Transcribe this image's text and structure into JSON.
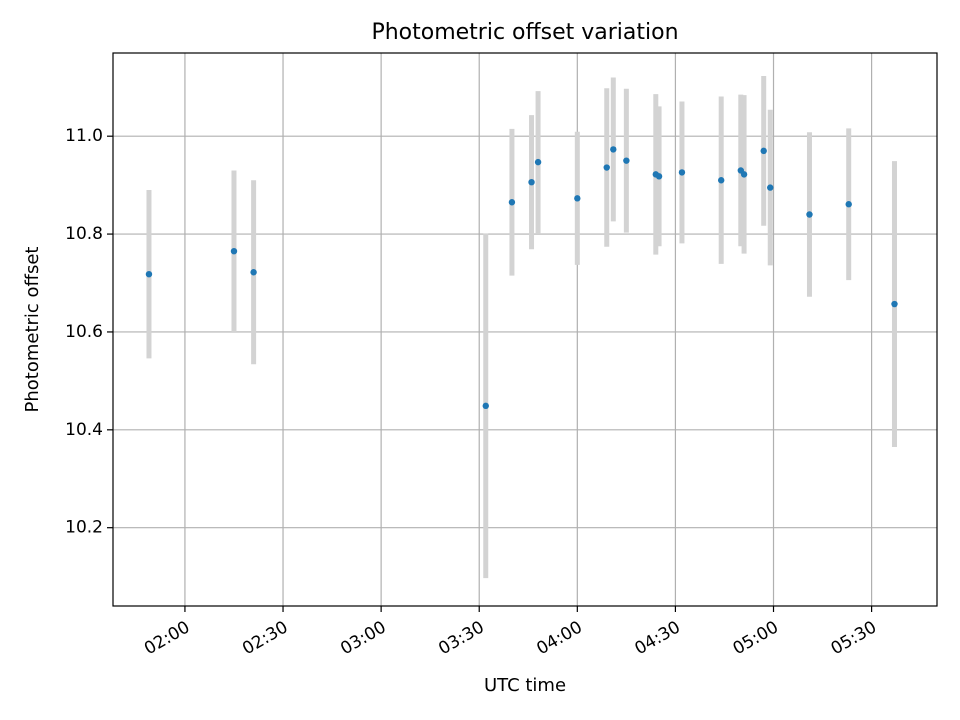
{
  "chart_data": {
    "type": "scatter",
    "title": "Photometric offset variation",
    "xlabel": "UTC time",
    "ylabel": "Photometric offset",
    "xlim": [
      "01:38",
      "05:50"
    ],
    "ylim": [
      10.04,
      11.17
    ],
    "xticks": [
      "02:00",
      "02:30",
      "03:00",
      "03:30",
      "04:00",
      "04:30",
      "05:00",
      "05:30"
    ],
    "yticks": [
      "10.2",
      "10.4",
      "10.6",
      "10.8",
      "11.0"
    ],
    "grid": true,
    "colors": {
      "point": "#1f77b4",
      "errorbar": "#d3d3d3",
      "grid": "#b0b0b0"
    },
    "points": [
      {
        "x": "01:49",
        "y": 10.718,
        "err": 0.172
      },
      {
        "x": "02:15",
        "y": 10.765,
        "err": 0.165
      },
      {
        "x": "02:21",
        "y": 10.722,
        "err": 0.188
      },
      {
        "x": "03:32",
        "y": 10.449,
        "err": 0.352
      },
      {
        "x": "03:40",
        "y": 10.865,
        "err": 0.15
      },
      {
        "x": "03:46",
        "y": 10.906,
        "err": 0.137
      },
      {
        "x": "03:48",
        "y": 10.947,
        "err": 0.145
      },
      {
        "x": "04:00",
        "y": 10.873,
        "err": 0.136
      },
      {
        "x": "04:09",
        "y": 10.936,
        "err": 0.162
      },
      {
        "x": "04:11",
        "y": 10.973,
        "err": 0.147
      },
      {
        "x": "04:15",
        "y": 10.95,
        "err": 0.147
      },
      {
        "x": "04:24",
        "y": 10.922,
        "err": 0.164
      },
      {
        "x": "04:25",
        "y": 10.918,
        "err": 0.143
      },
      {
        "x": "04:32",
        "y": 10.926,
        "err": 0.145
      },
      {
        "x": "04:44",
        "y": 10.91,
        "err": 0.171
      },
      {
        "x": "04:50",
        "y": 10.93,
        "err": 0.155
      },
      {
        "x": "04:51",
        "y": 10.922,
        "err": 0.162
      },
      {
        "x": "04:57",
        "y": 10.97,
        "err": 0.153
      },
      {
        "x": "04:59",
        "y": 10.895,
        "err": 0.159
      },
      {
        "x": "05:11",
        "y": 10.84,
        "err": 0.168
      },
      {
        "x": "05:23",
        "y": 10.861,
        "err": 0.155
      },
      {
        "x": "05:37",
        "y": 10.657,
        "err": 0.292
      }
    ]
  }
}
